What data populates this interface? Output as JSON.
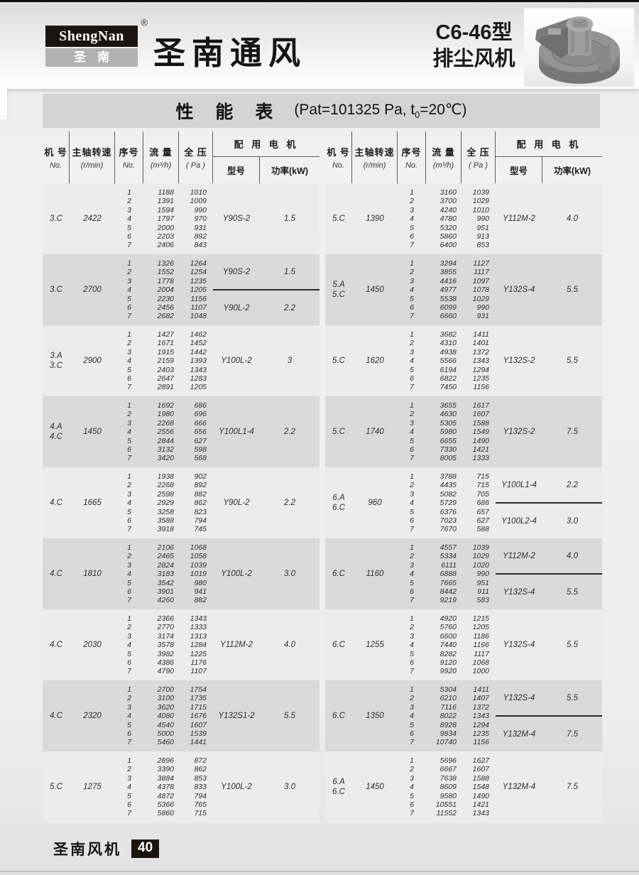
{
  "header": {
    "logo_top": "ShengNan",
    "logo_reg": "®",
    "logo_bottom": "圣南",
    "brand_title": "圣南通风",
    "model_line1": "C6-46型",
    "model_line2": "排尘风机"
  },
  "title_bar": {
    "title": "性 能 表",
    "cond_pre": "(Pat=101325 Pa, t",
    "cond_sub": "0",
    "cond_post": "=20℃)"
  },
  "table_header": {
    "col_machine": "机 号",
    "col_machine_sub": "No.",
    "col_speed": "主轴转速",
    "col_speed_sub": "(r/min)",
    "col_seq": "序号",
    "col_seq_sub": "No.",
    "col_flow": "流 量",
    "col_flow_sub": "(m³/h)",
    "col_pressure": "全 压",
    "col_pressure_sub": "( Pa )",
    "col_motor_group": "配 用 电 机",
    "col_motor_model": "型号",
    "col_motor_power": "功率(kW)"
  },
  "footer": {
    "brand": "圣南风机",
    "page": "40"
  },
  "left_blocks": [
    {
      "machine": [
        "3.C"
      ],
      "speed": "2422",
      "rows": [
        [
          "1",
          "1188",
          "1010"
        ],
        [
          "2",
          "1391",
          "1009"
        ],
        [
          "3",
          "1594",
          "990"
        ],
        [
          "4",
          "1797",
          "970"
        ],
        [
          "5",
          "2000",
          "931"
        ],
        [
          "6",
          "2203",
          "892"
        ],
        [
          "7",
          "2406",
          "843"
        ]
      ],
      "motors": [
        {
          "model": "Y90S-2",
          "power": "1.5"
        }
      ]
    },
    {
      "machine": [
        "3.C"
      ],
      "speed": "2700",
      "rows": [
        [
          "1",
          "1326",
          "1264"
        ],
        [
          "2",
          "1552",
          "1254"
        ],
        [
          "3",
          "1778",
          "1235"
        ],
        [
          "4",
          "2004",
          "1205"
        ],
        [
          "5",
          "2230",
          "1156"
        ],
        [
          "6",
          "2456",
          "1107"
        ],
        [
          "7",
          "2682",
          "1048"
        ]
      ],
      "motors": [
        {
          "model": "Y90S-2",
          "power": "1.5"
        },
        {
          "model": "Y90L-2",
          "power": "2.2"
        }
      ]
    },
    {
      "machine": [
        "3.A",
        "3.C"
      ],
      "speed": "2900",
      "rows": [
        [
          "1",
          "1427",
          "1462"
        ],
        [
          "2",
          "1671",
          "1452"
        ],
        [
          "3",
          "1915",
          "1442"
        ],
        [
          "4",
          "2159",
          "1393"
        ],
        [
          "5",
          "2403",
          "1343"
        ],
        [
          "6",
          "2647",
          "1283"
        ],
        [
          "7",
          "2891",
          "1205"
        ]
      ],
      "motors": [
        {
          "model": "Y100L-2",
          "power": "3"
        }
      ]
    },
    {
      "machine": [
        "4.A",
        "4.C"
      ],
      "speed": "1450",
      "rows": [
        [
          "1",
          "1692",
          "686"
        ],
        [
          "2",
          "1980",
          "696"
        ],
        [
          "3",
          "2268",
          "666"
        ],
        [
          "4",
          "2556",
          "656"
        ],
        [
          "5",
          "2844",
          "627"
        ],
        [
          "6",
          "3132",
          "598"
        ],
        [
          "7",
          "3420",
          "568"
        ]
      ],
      "motors": [
        {
          "model": "Y100L1-4",
          "power": "2.2"
        }
      ]
    },
    {
      "machine": [
        "4.C"
      ],
      "speed": "1665",
      "rows": [
        [
          "1",
          "1938",
          "902"
        ],
        [
          "2",
          "2268",
          "892"
        ],
        [
          "3",
          "2598",
          "882"
        ],
        [
          "4",
          "2929",
          "862"
        ],
        [
          "5",
          "3258",
          "823"
        ],
        [
          "6",
          "3588",
          "794"
        ],
        [
          "7",
          "3918",
          "745"
        ]
      ],
      "motors": [
        {
          "model": "Y90L-2",
          "power": "2.2"
        }
      ]
    },
    {
      "machine": [
        "4.C"
      ],
      "speed": "1810",
      "rows": [
        [
          "1",
          "2106",
          "1068"
        ],
        [
          "2",
          "2465",
          "1058"
        ],
        [
          "3",
          "2824",
          "1039"
        ],
        [
          "4",
          "3183",
          "1019"
        ],
        [
          "5",
          "3542",
          "980"
        ],
        [
          "6",
          "3901",
          "941"
        ],
        [
          "7",
          "4260",
          "882"
        ]
      ],
      "motors": [
        {
          "model": "Y100L-2",
          "power": "3.0"
        }
      ]
    },
    {
      "machine": [
        "4.C"
      ],
      "speed": "2030",
      "rows": [
        [
          "1",
          "2366",
          "1343"
        ],
        [
          "2",
          "2770",
          "1333"
        ],
        [
          "3",
          "3174",
          "1313"
        ],
        [
          "4",
          "3578",
          "1284"
        ],
        [
          "5",
          "3982",
          "1225"
        ],
        [
          "6",
          "4386",
          "1176"
        ],
        [
          "7",
          "4790",
          "1107"
        ]
      ],
      "motors": [
        {
          "model": "Y112M-2",
          "power": "4.0"
        }
      ]
    },
    {
      "machine": [
        "4.C"
      ],
      "speed": "2320",
      "rows": [
        [
          "1",
          "2700",
          "1754"
        ],
        [
          "2",
          "3100",
          "1735"
        ],
        [
          "3",
          "3620",
          "1715"
        ],
        [
          "4",
          "4080",
          "1676"
        ],
        [
          "5",
          "4540",
          "1607"
        ],
        [
          "6",
          "5000",
          "1539"
        ],
        [
          "7",
          "5460",
          "1441"
        ]
      ],
      "motors": [
        {
          "model": "Y132S1-2",
          "power": "5.5"
        }
      ]
    },
    {
      "machine": [
        "5.C"
      ],
      "speed": "1275",
      "rows": [
        [
          "1",
          "2896",
          "872"
        ],
        [
          "2",
          "3390",
          "862"
        ],
        [
          "3",
          "3884",
          "853"
        ],
        [
          "4",
          "4378",
          "833"
        ],
        [
          "5",
          "4872",
          "794"
        ],
        [
          "6",
          "5366",
          "765"
        ],
        [
          "7",
          "5860",
          "715"
        ]
      ],
      "motors": [
        {
          "model": "Y100L-2",
          "power": "3.0"
        }
      ]
    }
  ],
  "right_blocks": [
    {
      "machine": [
        "5.C"
      ],
      "speed": "1390",
      "rows": [
        [
          "1",
          "3160",
          "1039"
        ],
        [
          "2",
          "3700",
          "1029"
        ],
        [
          "3",
          "4240",
          "1010"
        ],
        [
          "4",
          "4780",
          "990"
        ],
        [
          "5",
          "5320",
          "951"
        ],
        [
          "6",
          "5860",
          "913"
        ],
        [
          "7",
          "6400",
          "853"
        ]
      ],
      "motors": [
        {
          "model": "Y112M-2",
          "power": "4.0"
        }
      ]
    },
    {
      "machine": [
        "5.A",
        "5.C"
      ],
      "speed": "1450",
      "rows": [
        [
          "1",
          "3294",
          "1127"
        ],
        [
          "2",
          "3855",
          "1117"
        ],
        [
          "3",
          "4416",
          "1097"
        ],
        [
          "4",
          "4977",
          "1078"
        ],
        [
          "5",
          "5538",
          "1029"
        ],
        [
          "6",
          "6099",
          "990"
        ],
        [
          "7",
          "6660",
          "931"
        ]
      ],
      "motors": [
        {
          "model": "Y132S-4",
          "power": "5.5"
        }
      ]
    },
    {
      "machine": [
        "5.C"
      ],
      "speed": "1620",
      "rows": [
        [
          "1",
          "3682",
          "1411"
        ],
        [
          "2",
          "4310",
          "1401"
        ],
        [
          "3",
          "4938",
          "1372"
        ],
        [
          "4",
          "5566",
          "1343"
        ],
        [
          "5",
          "6194",
          "1294"
        ],
        [
          "6",
          "6822",
          "1235"
        ],
        [
          "7",
          "7450",
          "1156"
        ]
      ],
      "motors": [
        {
          "model": "Y132S-2",
          "power": "5.5"
        }
      ]
    },
    {
      "machine": [
        "5.C"
      ],
      "speed": "1740",
      "rows": [
        [
          "1",
          "3655",
          "1617"
        ],
        [
          "2",
          "4630",
          "1607"
        ],
        [
          "3",
          "5305",
          "1588"
        ],
        [
          "4",
          "5980",
          "1549"
        ],
        [
          "5",
          "6655",
          "1490"
        ],
        [
          "6",
          "7330",
          "1421"
        ],
        [
          "7",
          "8005",
          "1333"
        ]
      ],
      "motors": [
        {
          "model": "Y132S-2",
          "power": "7.5"
        }
      ]
    },
    {
      "machine": [
        "6.A",
        "6.C"
      ],
      "speed": "960",
      "rows": [
        [
          "1",
          "3788",
          "715"
        ],
        [
          "2",
          "4435",
          "715"
        ],
        [
          "3",
          "5082",
          "705"
        ],
        [
          "4",
          "5729",
          "686"
        ],
        [
          "5",
          "6376",
          "657"
        ],
        [
          "6",
          "7023",
          "627"
        ],
        [
          "7",
          "7670",
          "588"
        ]
      ],
      "motors": [
        {
          "model": "Y100L1-4",
          "power": "2.2"
        },
        {
          "model": "Y100L2-4",
          "power": "3.0"
        }
      ]
    },
    {
      "machine": [
        "6.C"
      ],
      "speed": "1160",
      "rows": [
        [
          "1",
          "4557",
          "1039"
        ],
        [
          "2",
          "5334",
          "1029"
        ],
        [
          "3",
          "6111",
          "1020"
        ],
        [
          "4",
          "6888",
          "990"
        ],
        [
          "5",
          "7665",
          "951"
        ],
        [
          "6",
          "8442",
          "911"
        ],
        [
          "7",
          "9219",
          "583"
        ]
      ],
      "motors": [
        {
          "model": "Y112M-2",
          "power": "4.0"
        },
        {
          "model": "Y132S-4",
          "power": "5.5"
        }
      ]
    },
    {
      "machine": [
        "6.C"
      ],
      "speed": "1255",
      "rows": [
        [
          "1",
          "4920",
          "1215"
        ],
        [
          "2",
          "5760",
          "1205"
        ],
        [
          "3",
          "6600",
          "1186"
        ],
        [
          "4",
          "7440",
          "1166"
        ],
        [
          "5",
          "8282",
          "1117"
        ],
        [
          "6",
          "9120",
          "1068"
        ],
        [
          "7",
          "9920",
          "1000"
        ]
      ],
      "motors": [
        {
          "model": "Y132S-4",
          "power": "5.5"
        }
      ]
    },
    {
      "machine": [
        "6.C"
      ],
      "speed": "1350",
      "rows": [
        [
          "1",
          "5304",
          "1411"
        ],
        [
          "2",
          "6210",
          "1407"
        ],
        [
          "3",
          "7116",
          "1372"
        ],
        [
          "4",
          "8022",
          "1343"
        ],
        [
          "5",
          "8928",
          "1294"
        ],
        [
          "6",
          "9834",
          "1235"
        ],
        [
          "7",
          "10740",
          "1156"
        ]
      ],
      "motors": [
        {
          "model": "Y132S-4",
          "power": "5.5"
        },
        {
          "model": "Y132M-4",
          "power": "7.5"
        }
      ]
    },
    {
      "machine": [
        "6.A",
        "6.C"
      ],
      "speed": "1450",
      "rows": [
        [
          "1",
          "5696",
          "1627"
        ],
        [
          "2",
          "6667",
          "1607"
        ],
        [
          "3",
          "7638",
          "1588"
        ],
        [
          "4",
          "8609",
          "1548"
        ],
        [
          "5",
          "9580",
          "1490"
        ],
        [
          "6",
          "10551",
          "1421"
        ],
        [
          "7",
          "11552",
          "1343"
        ]
      ],
      "motors": [
        {
          "model": "Y132M-4",
          "power": "7.5"
        }
      ]
    }
  ]
}
